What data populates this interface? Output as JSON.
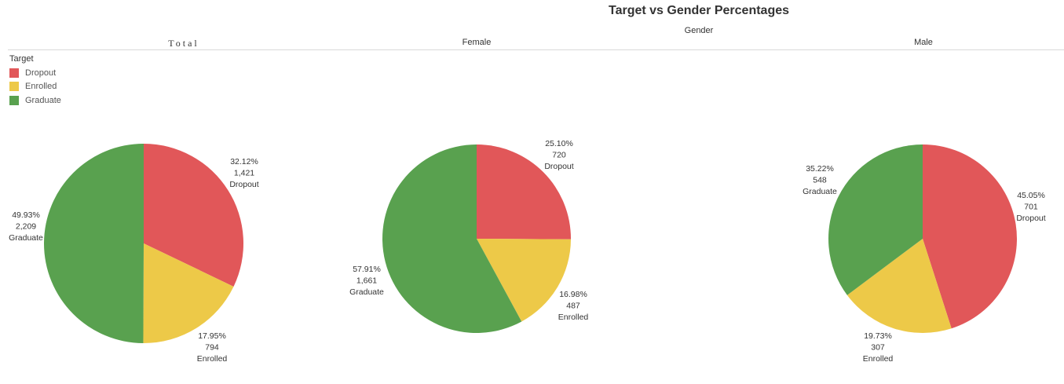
{
  "title": "Target vs Gender Percentages",
  "gender_header": "Gender",
  "columns": {
    "total": "Total",
    "female": "Female",
    "male": "Male"
  },
  "legend": {
    "title": "Target",
    "items": [
      {
        "label": "Dropout",
        "color": "#e15759"
      },
      {
        "label": "Enrolled",
        "color": "#edc948"
      },
      {
        "label": "Graduate",
        "color": "#59a14f"
      }
    ]
  },
  "chart_data": [
    {
      "type": "pie",
      "title": "Total",
      "slices": [
        {
          "category": "Dropout",
          "percent": "32.12%",
          "count": "1,421",
          "value": 32.12
        },
        {
          "category": "Enrolled",
          "percent": "17.95%",
          "count": "794",
          "value": 17.95
        },
        {
          "category": "Graduate",
          "percent": "49.93%",
          "count": "2,209",
          "value": 49.93
        }
      ]
    },
    {
      "type": "pie",
      "title": "Female",
      "slices": [
        {
          "category": "Dropout",
          "percent": "25.10%",
          "count": "720",
          "value": 25.1
        },
        {
          "category": "Enrolled",
          "percent": "16.98%",
          "count": "487",
          "value": 16.98
        },
        {
          "category": "Graduate",
          "percent": "57.91%",
          "count": "1,661",
          "value": 57.91
        }
      ]
    },
    {
      "type": "pie",
      "title": "Male",
      "slices": [
        {
          "category": "Dropout",
          "percent": "45.05%",
          "count": "701",
          "value": 45.05
        },
        {
          "category": "Enrolled",
          "percent": "19.73%",
          "count": "307",
          "value": 19.73
        },
        {
          "category": "Graduate",
          "percent": "35.22%",
          "count": "548",
          "value": 35.22
        }
      ]
    }
  ]
}
